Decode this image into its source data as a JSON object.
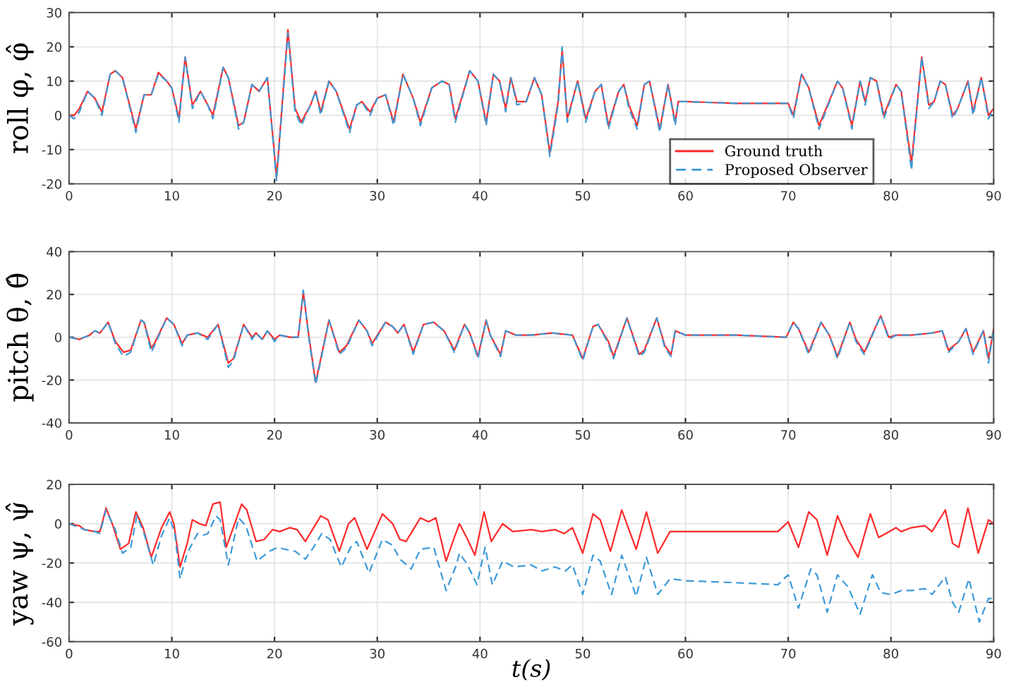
{
  "chart_data": [
    {
      "type": "line",
      "ylabel": "roll φ, φ̂",
      "xlim": [
        0,
        90
      ],
      "ylim": [
        -20,
        30
      ],
      "xticks": [
        0,
        10,
        20,
        30,
        40,
        50,
        60,
        70,
        80,
        90
      ],
      "yticks": [
        -20,
        -10,
        0,
        10,
        20,
        30
      ],
      "grid": true,
      "legend": "bottom right",
      "tick_labels": true,
      "series": [
        {
          "name": "Ground truth",
          "color": "#ff2a2a",
          "line_style": "solid",
          "x": [
            0,
            0.5,
            1,
            1.8,
            2.5,
            3.2,
            4,
            4.5,
            5.2,
            6.5,
            7.3,
            8,
            8.7,
            9.5,
            10,
            10.7,
            11.3,
            12,
            12.8,
            13.5,
            14,
            15,
            15.5,
            16.5,
            17,
            17.8,
            18.5,
            19.3,
            20.2,
            21.3,
            22,
            22.6,
            23.5,
            24,
            24.5,
            25.3,
            26,
            27.3,
            28,
            28.5,
            29.3,
            30,
            30.8,
            31.6,
            32.5,
            33.5,
            34.2,
            35.3,
            36.3,
            37,
            37.6,
            39,
            39.8,
            40.6,
            41.3,
            41.9,
            42.5,
            43,
            43.6,
            44.5,
            45.3,
            46,
            46.8,
            47.6,
            48,
            48.5,
            49.5,
            50.3,
            51.2,
            51.8,
            52.5,
            53.5,
            54,
            54.5,
            55.3,
            56,
            56.5,
            57.5,
            58.3,
            59,
            59.3,
            60,
            65,
            70,
            70.5,
            71.3,
            72,
            73,
            74.8,
            75.3,
            76.2,
            77,
            77.5,
            78,
            78.6,
            79.3,
            80.5,
            81,
            82,
            83,
            83.7,
            84.2,
            84.8,
            85.3,
            86,
            86.5,
            87.5,
            88,
            88.8,
            89.5,
            90
          ],
          "values": [
            0,
            0,
            2,
            7,
            5,
            1,
            12,
            13,
            11,
            -4,
            6,
            6,
            12.5,
            10,
            8,
            -1,
            17,
            3,
            7,
            3,
            0,
            14,
            11,
            -3,
            -2,
            9,
            7,
            11,
            -18,
            25,
            2,
            -2,
            3,
            7,
            1,
            10,
            7,
            -4,
            3,
            4,
            1,
            5,
            6,
            -2,
            12,
            5,
            -2,
            8,
            10,
            9,
            -1,
            13,
            10,
            -2,
            12,
            10,
            2,
            11,
            4,
            4,
            11,
            6,
            -11,
            4,
            19,
            -1,
            10,
            -1,
            7,
            9,
            -3,
            7,
            9,
            3,
            -3,
            9,
            10,
            -4,
            9,
            -2,
            4,
            4,
            3.5,
            3.5,
            0,
            12,
            8,
            -3,
            10,
            8,
            -3,
            10,
            4,
            11,
            10,
            0,
            9,
            7,
            -14,
            17,
            3,
            4,
            10,
            9,
            0,
            2,
            10,
            1,
            11,
            0,
            2
          ]
        },
        {
          "name": "Proposed Observer",
          "color": "#3d9ad8",
          "line_style": "dashed",
          "x": [
            0,
            0.5,
            1,
            1.8,
            2.5,
            3.2,
            4,
            4.5,
            5.2,
            6.5,
            7.3,
            8,
            8.7,
            9.5,
            10,
            10.7,
            11.3,
            12,
            12.8,
            13.5,
            14,
            15,
            15.5,
            16.5,
            17,
            17.8,
            18.5,
            19.3,
            20.2,
            21.3,
            22,
            22.6,
            23.5,
            24,
            24.5,
            25.3,
            26,
            27.3,
            28,
            28.5,
            29.3,
            30,
            30.8,
            31.6,
            32.5,
            33.5,
            34.2,
            35.3,
            36.3,
            37,
            37.6,
            39,
            39.8,
            40.6,
            41.3,
            41.9,
            42.5,
            43,
            43.6,
            44.5,
            45.3,
            46,
            46.8,
            47.6,
            48,
            48.5,
            49.5,
            50.3,
            51.2,
            51.8,
            52.5,
            53.5,
            54,
            54.5,
            55.3,
            56,
            56.5,
            57.5,
            58.3,
            59,
            59.3,
            60,
            65,
            70,
            70.5,
            71.3,
            72,
            73,
            74.8,
            75.3,
            76.2,
            77,
            77.5,
            78,
            78.6,
            79.3,
            80.5,
            81,
            82,
            83,
            83.7,
            84.2,
            84.8,
            85.3,
            86,
            86.5,
            87.5,
            88,
            88.8,
            89.5,
            90
          ],
          "values": [
            0,
            -1,
            1,
            7,
            5,
            0,
            12,
            13,
            11,
            -5,
            6,
            6,
            12,
            10,
            8,
            -2,
            17,
            2,
            7,
            3,
            -1,
            14,
            11,
            -4,
            -2,
            9,
            7,
            11,
            -19,
            24,
            1,
            -3,
            3,
            7,
            0,
            10,
            7,
            -5,
            3,
            4,
            0,
            5,
            6,
            -3,
            12,
            5,
            -3,
            8,
            10,
            9,
            -2,
            13,
            10,
            -3,
            12,
            10,
            1,
            11,
            3,
            4,
            11,
            6,
            -12,
            3,
            20,
            -2,
            10,
            -2,
            7,
            9,
            -4,
            7,
            9,
            2,
            -4,
            9,
            10,
            -5,
            9,
            -3,
            4,
            4,
            3.5,
            3.5,
            -1,
            12,
            8,
            -4,
            10,
            8,
            -4,
            10,
            3,
            11,
            10,
            -1,
            9,
            7,
            -16,
            17,
            2,
            4,
            10,
            9,
            -1,
            2,
            10,
            0,
            11,
            -1,
            2
          ]
        }
      ]
    },
    {
      "type": "line",
      "ylabel": "pitch θ, θ̂",
      "xlim": [
        0,
        90
      ],
      "ylim": [
        -40,
        40
      ],
      "xticks": [
        0,
        10,
        20,
        30,
        40,
        50,
        60,
        70,
        80,
        90
      ],
      "yticks": [
        -40,
        -20,
        0,
        20,
        40
      ],
      "grid": true,
      "legend": false,
      "series": [
        {
          "color": "#ff2a2a",
          "line_style": "solid",
          "x": [
            0,
            1,
            2,
            2.5,
            3,
            3.8,
            4.5,
            5.3,
            6,
            7,
            7.3,
            8,
            8.3,
            9.5,
            10.2,
            11,
            11.5,
            12.5,
            13.5,
            14.5,
            15.5,
            16,
            17,
            17.8,
            18.2,
            18.8,
            19.3,
            20,
            20.5,
            21.5,
            22.3,
            22.8,
            23.3,
            24,
            24.5,
            25.3,
            26.3,
            27,
            28.2,
            29,
            29.5,
            30.8,
            31.5,
            32,
            32.6,
            33.5,
            34.5,
            35.5,
            36.5,
            37.5,
            38.5,
            39,
            39.8,
            40.6,
            41,
            42,
            42.5,
            43.5,
            45,
            47,
            49,
            50,
            51,
            51.5,
            52.5,
            53,
            54.3,
            55.5,
            56,
            57.2,
            58,
            58.6,
            59,
            60,
            65,
            69.8,
            70.5,
            71,
            72,
            73.2,
            74,
            74.8,
            76,
            76.6,
            77.4,
            79,
            79.8,
            80.5,
            82,
            84,
            85,
            85.6,
            86.6,
            87.3,
            88,
            89,
            89.5,
            90
          ],
          "values": [
            0,
            -1,
            1,
            3,
            2,
            7,
            -2,
            -7,
            -6,
            8,
            7,
            -5,
            -3,
            9,
            6,
            -3,
            1,
            2,
            0,
            6,
            -12,
            -10,
            6,
            0,
            2,
            -1,
            3,
            -1,
            1,
            0,
            0,
            21,
            2,
            -21,
            -10,
            8,
            -7,
            -4,
            8,
            3,
            -3,
            7,
            5,
            2,
            6,
            -7,
            6,
            7,
            3,
            -6,
            6,
            2,
            -9,
            8,
            1,
            -8,
            3,
            1,
            1,
            2,
            1,
            -10,
            5,
            6,
            -2,
            -9,
            9,
            -8,
            -6,
            9,
            -4,
            -8,
            3,
            1,
            1,
            0,
            7,
            4,
            -7,
            7,
            1,
            -9,
            7,
            -1,
            -7,
            10,
            0,
            1,
            1,
            2,
            3,
            -6,
            -2,
            4,
            -7,
            3,
            -10,
            4
          ]
        },
        {
          "color": "#3d9ad8",
          "line_style": "dashed",
          "x": [
            0,
            1,
            2,
            2.5,
            3,
            3.8,
            4.5,
            5.3,
            6,
            7,
            7.3,
            8,
            8.3,
            9.5,
            10.2,
            11,
            11.5,
            12.5,
            13.5,
            14.5,
            15.5,
            16,
            17,
            17.8,
            18.2,
            18.8,
            19.3,
            20,
            20.5,
            21.5,
            22.3,
            22.8,
            23.3,
            24,
            24.5,
            25.3,
            26.3,
            27,
            28.2,
            29,
            29.5,
            30.8,
            31.5,
            32,
            32.6,
            33.5,
            34.5,
            35.5,
            36.5,
            37.5,
            38.5,
            39,
            39.8,
            40.6,
            41,
            42,
            42.5,
            43.5,
            45,
            47,
            49,
            50,
            51,
            51.5,
            52.5,
            53,
            54.3,
            55.5,
            56,
            57.2,
            58,
            58.6,
            59,
            60,
            65,
            69.8,
            70.5,
            71,
            72,
            73.2,
            74,
            74.8,
            76,
            76.6,
            77.4,
            79,
            79.8,
            80.5,
            82,
            84,
            85,
            85.6,
            86.6,
            87.3,
            88,
            89,
            89.5,
            90
          ],
          "values": [
            0,
            -1,
            1,
            3,
            2,
            7,
            -3,
            -9,
            -7,
            8,
            7,
            -7,
            -4,
            9,
            6,
            -4,
            1,
            2,
            -1,
            6,
            -14,
            -11,
            6,
            -1,
            2,
            -1,
            3,
            -2,
            1,
            0,
            0,
            22,
            1,
            -22,
            -11,
            8,
            -8,
            -5,
            8,
            3,
            -4,
            7,
            5,
            2,
            6,
            -8,
            6,
            7,
            3,
            -7,
            6,
            2,
            -10,
            8,
            1,
            -9,
            3,
            1,
            1,
            2,
            1,
            -11,
            5,
            6,
            -3,
            -10,
            9,
            -9,
            -7,
            9,
            -5,
            -9,
            3,
            1,
            1,
            0,
            7,
            4,
            -8,
            7,
            1,
            -10,
            7,
            -2,
            -8,
            10,
            -1,
            1,
            1,
            2,
            3,
            -7,
            -2,
            4,
            -8,
            3,
            -12,
            4
          ]
        }
      ]
    },
    {
      "type": "line",
      "ylabel": "yaw ψ, ψ̂",
      "xlabel": "t(s)",
      "xlim": [
        0,
        90
      ],
      "ylim": [
        -60,
        20
      ],
      "xticks": [
        0,
        10,
        20,
        30,
        40,
        50,
        60,
        70,
        80,
        90
      ],
      "yticks": [
        -60,
        -40,
        -20,
        0,
        20
      ],
      "grid": true,
      "legend": false,
      "series": [
        {
          "color": "#ff2a2a",
          "line_style": "solid",
          "x": [
            0,
            1,
            1.5,
            2.5,
            3,
            3.6,
            4.2,
            5,
            5.8,
            6.5,
            7.2,
            8,
            9,
            9.8,
            10.2,
            10.8,
            11.5,
            12,
            12.7,
            13.3,
            14,
            14.7,
            15.3,
            16.8,
            17.3,
            18.2,
            19,
            19.8,
            20.5,
            21.5,
            22.2,
            23,
            23.8,
            24.5,
            25.2,
            26.3,
            27.2,
            27.8,
            29,
            30.5,
            31.5,
            32.2,
            32.8,
            33.5,
            34.2,
            35,
            35.7,
            36.7,
            37.5,
            38,
            38.7,
            39.5,
            40.4,
            41.1,
            42.2,
            43.2,
            45,
            46,
            47.3,
            48.2,
            49,
            50,
            51,
            51.7,
            52.7,
            53.8,
            55.2,
            56.2,
            57.3,
            58.5,
            60,
            65,
            69,
            70,
            71,
            72,
            72.8,
            73.8,
            74.8,
            75.8,
            76.8,
            78,
            78.8,
            79.5,
            80.5,
            81,
            82,
            83.3,
            84,
            85.3,
            86,
            86.6,
            87.5,
            88.5,
            89.5,
            90
          ],
          "values": [
            0,
            -1,
            -3,
            -4,
            -4,
            8,
            0,
            -13,
            -10,
            6,
            -2,
            -17,
            -2,
            6,
            0,
            -22,
            -10,
            2,
            0,
            -1,
            10,
            11,
            -12,
            10,
            7,
            -9,
            -8,
            -3,
            -4,
            -2,
            -3,
            -9,
            -2,
            4,
            2,
            -14,
            0,
            3,
            -13,
            5,
            0,
            -8,
            -9,
            -3,
            3,
            1,
            3,
            -19,
            -7,
            0,
            -7,
            -16,
            6,
            -9,
            0,
            -4,
            -3,
            -4,
            -3,
            -5,
            -2,
            -15,
            5,
            2,
            -14,
            7,
            -13,
            6,
            -15,
            -4,
            -4,
            -4,
            -4,
            1,
            -12,
            6,
            2,
            -16,
            4,
            -8,
            -17,
            5,
            -7,
            -5,
            -2,
            -4,
            -2,
            -1,
            -4,
            7,
            -10,
            -12,
            8,
            -15,
            2,
            0
          ]
        },
        {
          "color": "#3d9ad8",
          "line_style": "dashed",
          "x": [
            0,
            1.5,
            2.5,
            3,
            3.6,
            4.5,
            5.2,
            6,
            6.6,
            7.3,
            8.2,
            9,
            9.8,
            10.3,
            10.8,
            11.5,
            12.5,
            13,
            13.5,
            14.3,
            14.7,
            15.5,
            16.5,
            17.2,
            18.3,
            19.5,
            20.3,
            21,
            22,
            22.5,
            23,
            23.8,
            24.6,
            25.4,
            26.5,
            27.4,
            28,
            29.2,
            30.5,
            31.5,
            32.2,
            33.3,
            34.2,
            35.5,
            36.7,
            37.7,
            38,
            38.8,
            39.7,
            40.5,
            41.2,
            42.2,
            43.3,
            45,
            46,
            47.3,
            48.3,
            49,
            50,
            51,
            51.7,
            52.8,
            53.8,
            55.2,
            56.2,
            57.3,
            58.5,
            60,
            65,
            69,
            70,
            71,
            72.2,
            72.8,
            73.8,
            74.8,
            75.8,
            77,
            78.2,
            79,
            80,
            81,
            82,
            83.3,
            84,
            85.3,
            86,
            86.6,
            87.6,
            88.6,
            89.5,
            90
          ],
          "values": [
            0,
            -3,
            -4,
            -5,
            7,
            -3,
            -15,
            -12,
            4,
            -5,
            -21,
            -6,
            3,
            -5,
            -28,
            -15,
            -5,
            -6,
            -5,
            4,
            2,
            -21,
            3,
            -1,
            -19,
            -14,
            -12,
            -13,
            -14,
            -16,
            -18,
            -12,
            -5,
            -8,
            -22,
            -12,
            -9,
            -25,
            -8,
            -11,
            -18,
            -23,
            -13,
            -12,
            -34,
            -21,
            -15,
            -21,
            -31,
            -12,
            -31,
            -19,
            -22,
            -21,
            -24,
            -22,
            -24,
            -21,
            -36,
            -16,
            -19,
            -36,
            -16,
            -37,
            -17,
            -36,
            -28,
            -29,
            -30,
            -31,
            -26,
            -43,
            -23,
            -26,
            -45,
            -26,
            -32,
            -46,
            -26,
            -35,
            -36,
            -34,
            -34,
            -33,
            -36,
            -27,
            -40,
            -45,
            -28,
            -50,
            -38,
            -38
          ]
        }
      ]
    }
  ]
}
